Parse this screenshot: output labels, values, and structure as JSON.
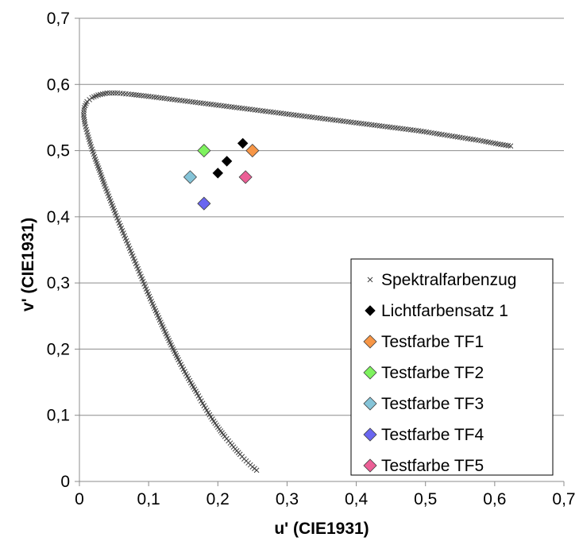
{
  "chart_data": {
    "type": "scatter",
    "xlabel": "u' (CIE1931)",
    "ylabel": "v' (CIE1931)",
    "xlim": [
      0,
      0.7
    ],
    "ylim": [
      0,
      0.7
    ],
    "x_ticks": [
      "0",
      "0,1",
      "0,2",
      "0,3",
      "0,4",
      "0,5",
      "0,6",
      "0,7"
    ],
    "y_ticks": [
      "0",
      "0,1",
      "0,2",
      "0,3",
      "0,4",
      "0,5",
      "0,6",
      "0,7"
    ],
    "grid": "horizontal",
    "legend_position": "bottom-right",
    "series": [
      {
        "name": "Spektralfarbenzug",
        "marker": "x",
        "color": "#404040",
        "points": [
          [
            0.256,
            0.017
          ],
          [
            0.25,
            0.022
          ],
          [
            0.244,
            0.028
          ],
          [
            0.238,
            0.034
          ],
          [
            0.232,
            0.041
          ],
          [
            0.225,
            0.049
          ],
          [
            0.218,
            0.058
          ],
          [
            0.21,
            0.068
          ],
          [
            0.202,
            0.079
          ],
          [
            0.194,
            0.091
          ],
          [
            0.186,
            0.104
          ],
          [
            0.178,
            0.118
          ],
          [
            0.17,
            0.133
          ],
          [
            0.161,
            0.149
          ],
          [
            0.152,
            0.166
          ],
          [
            0.143,
            0.184
          ],
          [
            0.134,
            0.203
          ],
          [
            0.125,
            0.223
          ],
          [
            0.116,
            0.244
          ],
          [
            0.107,
            0.265
          ],
          [
            0.098,
            0.287
          ],
          [
            0.089,
            0.31
          ],
          [
            0.08,
            0.333
          ],
          [
            0.071,
            0.356
          ],
          [
            0.062,
            0.379
          ],
          [
            0.053,
            0.402
          ],
          [
            0.045,
            0.424
          ],
          [
            0.037,
            0.446
          ],
          [
            0.03,
            0.467
          ],
          [
            0.023,
            0.487
          ],
          [
            0.017,
            0.506
          ],
          [
            0.012,
            0.524
          ],
          [
            0.008,
            0.54
          ],
          [
            0.006,
            0.554
          ],
          [
            0.007,
            0.565
          ],
          [
            0.011,
            0.574
          ],
          [
            0.018,
            0.58
          ],
          [
            0.027,
            0.584
          ],
          [
            0.04,
            0.587
          ],
          [
            0.055,
            0.587
          ],
          [
            0.075,
            0.585
          ],
          [
            0.1,
            0.582
          ],
          [
            0.13,
            0.578
          ],
          [
            0.16,
            0.574
          ],
          [
            0.19,
            0.57
          ],
          [
            0.22,
            0.566
          ],
          [
            0.25,
            0.562
          ],
          [
            0.28,
            0.558
          ],
          [
            0.31,
            0.554
          ],
          [
            0.34,
            0.55
          ],
          [
            0.37,
            0.546
          ],
          [
            0.4,
            0.542
          ],
          [
            0.43,
            0.538
          ],
          [
            0.46,
            0.534
          ],
          [
            0.49,
            0.53
          ],
          [
            0.52,
            0.525
          ],
          [
            0.55,
            0.52
          ],
          [
            0.58,
            0.515
          ],
          [
            0.605,
            0.51
          ],
          [
            0.623,
            0.507
          ]
        ]
      },
      {
        "name": "Lichtfarbensatz 1",
        "marker": "diamond",
        "color": "#000000",
        "points": [
          [
            0.2,
            0.466
          ],
          [
            0.213,
            0.484
          ],
          [
            0.236,
            0.511
          ]
        ]
      },
      {
        "name": "Testfarbe TF1",
        "marker": "diamond",
        "color": "#f79646",
        "points": [
          [
            0.25,
            0.5
          ]
        ]
      },
      {
        "name": "Testfarbe TF2",
        "marker": "diamond",
        "color": "#7ef25e",
        "points": [
          [
            0.18,
            0.5
          ]
        ]
      },
      {
        "name": "Testfarbe TF3",
        "marker": "diamond",
        "color": "#85c4d8",
        "points": [
          [
            0.16,
            0.46
          ]
        ]
      },
      {
        "name": "Testfarbe TF4",
        "marker": "diamond",
        "color": "#6a66f0",
        "points": [
          [
            0.18,
            0.42
          ]
        ]
      },
      {
        "name": "Testfarbe TF5",
        "marker": "diamond",
        "color": "#ec5f96",
        "points": [
          [
            0.24,
            0.46
          ]
        ]
      }
    ]
  }
}
